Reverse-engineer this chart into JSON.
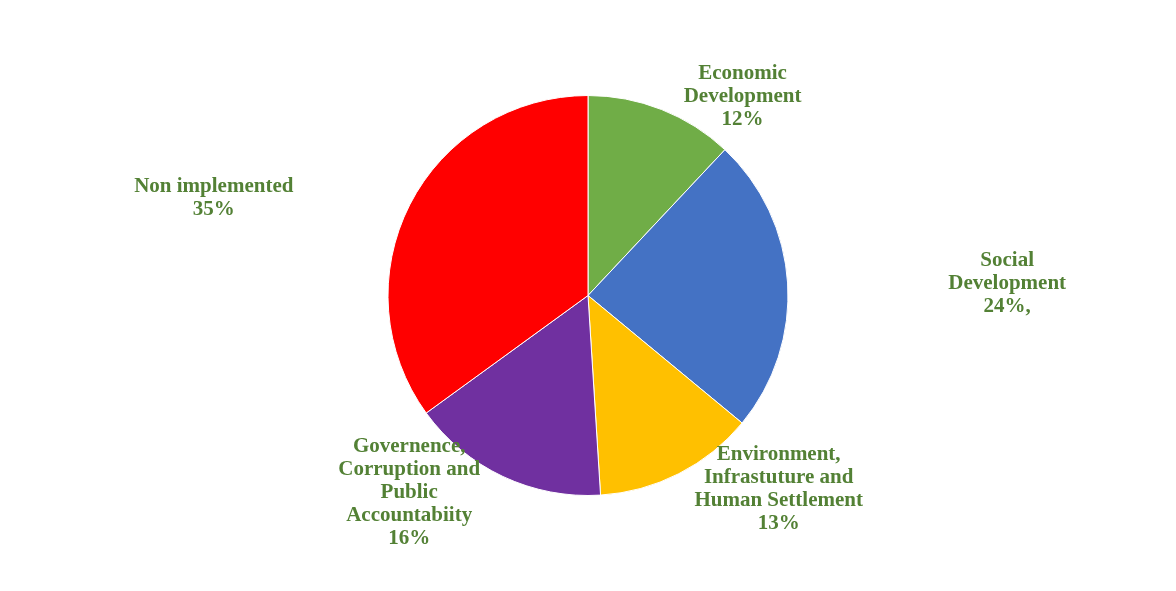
{
  "chart_data": {
    "type": "pie",
    "categories": [
      "Economic Development",
      "Social Development",
      "Environment, Infrastuture and Human Settlement",
      "Governence, Corruption and Public Accountabiity",
      "Non implemented"
    ],
    "values": [
      12,
      24,
      13,
      16,
      35
    ],
    "value_labels": [
      "12%",
      "24%,",
      "13%",
      "16%",
      "35%"
    ],
    "colors": [
      "#70ad47",
      "#4472c4",
      "#ffc000",
      "#7030a0",
      "#ff0000"
    ]
  }
}
